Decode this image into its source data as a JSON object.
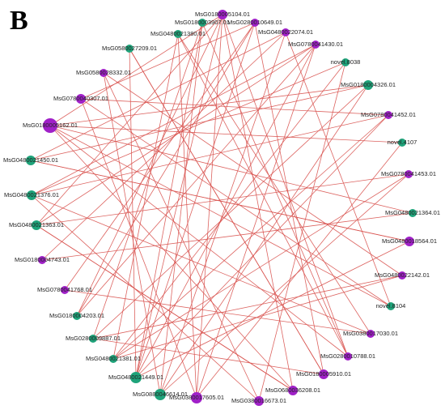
{
  "panel_label": "B",
  "nodes": [
    {
      "label": "MsG0180005104.01"
    },
    {
      "label": "MsG0280010649.01"
    },
    {
      "label": "MsG0480022074.01"
    },
    {
      "label": "MsG0780041430.01"
    },
    {
      "label": "novel.8038"
    },
    {
      "label": "MsG0180004326.01"
    },
    {
      "label": "MsG0780041452.01"
    },
    {
      "label": "novel.4107"
    },
    {
      "label": "MsG0780041453.01"
    },
    {
      "label": "MsG0480021364.01"
    },
    {
      "label": "MsG0480018564.01"
    },
    {
      "label": "MsG0480022142.01"
    },
    {
      "label": "novel.8104"
    },
    {
      "label": "MsG0380017030.01"
    },
    {
      "label": "MsG0280010788.01"
    },
    {
      "label": "MsG0180005910.01"
    },
    {
      "label": "MsG0680036208.01"
    },
    {
      "label": "MsG0380016673.01"
    },
    {
      "label": "MsG0380017605.01"
    },
    {
      "label": "MsG0880046614.01"
    },
    {
      "label": "MsG0480021449.01"
    },
    {
      "label": "MsG0480021381.01"
    },
    {
      "label": "MsG0280009887.01"
    },
    {
      "label": "MsG0180004203.01"
    },
    {
      "label": "MsG0780041768.01"
    },
    {
      "label": "MsG0180004743.01"
    },
    {
      "label": "MsG0480021363.01"
    },
    {
      "label": "MsG0480021376.01"
    },
    {
      "label": "MsG0480021450.01"
    },
    {
      "label": "MsG0180005162.01"
    },
    {
      "label": "MsG0780040307.01"
    },
    {
      "label": "MsG0580028332.01"
    },
    {
      "label": "MsG0580027209.01"
    },
    {
      "label": "MsG0480021380.01"
    },
    {
      "label": "MsG0180003907.01"
    }
  ]
}
